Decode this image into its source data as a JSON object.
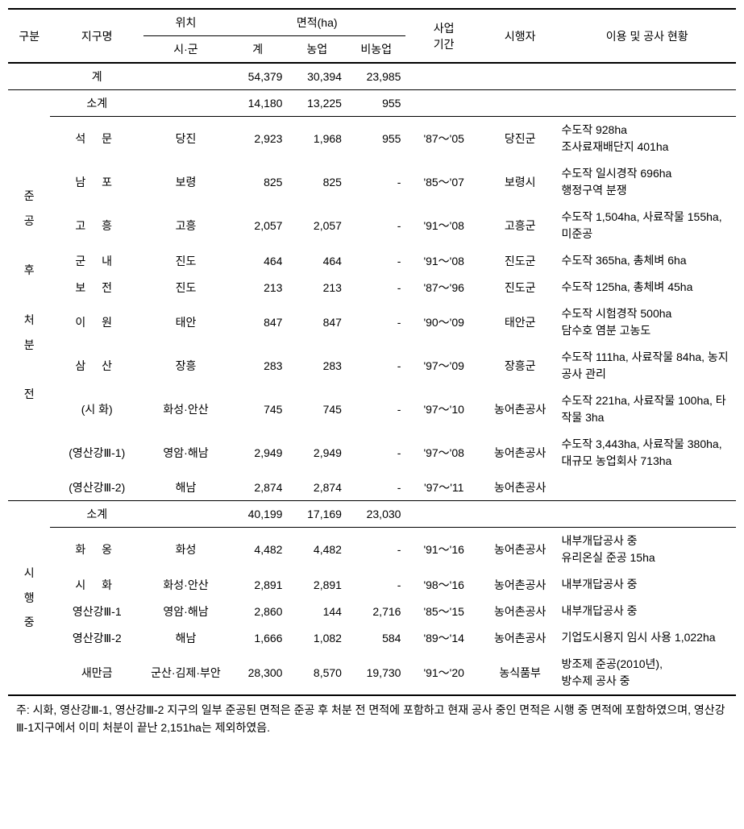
{
  "headers": {
    "gubun": "구분",
    "district": "지구명",
    "location": "위치",
    "location_sub": "시·군",
    "area": "면적(ha)",
    "area_total": "계",
    "area_ag": "농업",
    "area_nonag": "비농업",
    "period": "사업\n기간",
    "executor": "시행자",
    "status": "이용 및 공사 현황"
  },
  "total": {
    "label": "계",
    "area_total": "54,379",
    "area_ag": "30,394",
    "area_nonag": "23,985"
  },
  "section1": {
    "group_label": "준공 후 처분 전",
    "subtotal": {
      "label": "소계",
      "area_total": "14,180",
      "area_ag": "13,225",
      "area_nonag": "955"
    },
    "rows": [
      {
        "name": "석 문",
        "name_class": "name-col",
        "loc": "당진",
        "a1": "2,923",
        "a2": "1,968",
        "a3": "955",
        "period": "'87～'05",
        "exec": "당진군",
        "desc": "수도작 928ha\n조사료재배단지 401ha"
      },
      {
        "name": "남 포",
        "name_class": "name-col",
        "loc": "보령",
        "a1": "825",
        "a2": "825",
        "a3": "-",
        "period": "'85～'07",
        "exec": "보령시",
        "desc": "수도작 일시경작 696ha\n행정구역 분쟁"
      },
      {
        "name": "고 흥",
        "name_class": "name-col",
        "loc": "고흥",
        "a1": "2,057",
        "a2": "2,057",
        "a3": "-",
        "period": "'91～'08",
        "exec": "고흥군",
        "desc": "수도작 1,504ha, 사료작물 155ha, 미준공"
      },
      {
        "name": "군 내",
        "name_class": "name-col",
        "loc": "진도",
        "a1": "464",
        "a2": "464",
        "a3": "-",
        "period": "'91～'08",
        "exec": "진도군",
        "desc": "수도작 365ha, 총체벼 6ha"
      },
      {
        "name": "보 전",
        "name_class": "name-col",
        "loc": "진도",
        "a1": "213",
        "a2": "213",
        "a3": "-",
        "period": "'87～'96",
        "exec": "진도군",
        "desc": "수도작 125ha, 총체벼 45ha"
      },
      {
        "name": "이 원",
        "name_class": "name-col",
        "loc": "태안",
        "a1": "847",
        "a2": "847",
        "a3": "-",
        "period": "'90～'09",
        "exec": "태안군",
        "desc": "수도작 시험경작 500ha\n담수호 염분 고농도"
      },
      {
        "name": "삼 산",
        "name_class": "name-col",
        "loc": "장흥",
        "a1": "283",
        "a2": "283",
        "a3": "-",
        "period": "'97～'09",
        "exec": "장흥군",
        "desc": "수도작 111ha, 사료작물 84ha, 농지 공사 관리"
      },
      {
        "name": "(시 화)",
        "name_class": "name-col-tight",
        "loc": "화성·안산",
        "a1": "745",
        "a2": "745",
        "a3": "-",
        "period": "'97～'10",
        "exec": "농어촌공사",
        "desc": "수도작 221ha, 사료작물 100ha, 타작물 3ha"
      },
      {
        "name": "(영산강Ⅲ-1)",
        "name_class": "name-col-tight",
        "loc": "영암·해남",
        "a1": "2,949",
        "a2": "2,949",
        "a3": "-",
        "period": "'97～'08",
        "exec": "농어촌공사",
        "desc": "수도작 3,443ha, 사료작물 380ha, 대규모 농업회사 713ha"
      },
      {
        "name": "(영산강Ⅲ-2)",
        "name_class": "name-col-tight",
        "loc": "해남",
        "a1": "2,874",
        "a2": "2,874",
        "a3": "-",
        "period": "'97～'11",
        "exec": "농어촌공사",
        "desc": ""
      }
    ]
  },
  "section2": {
    "group_label": "시행중",
    "subtotal": {
      "label": "소계",
      "area_total": "40,199",
      "area_ag": "17,169",
      "area_nonag": "23,030"
    },
    "rows": [
      {
        "name": "화 옹",
        "name_class": "name-col",
        "loc": "화성",
        "a1": "4,482",
        "a2": "4,482",
        "a3": "-",
        "period": "'91～'16",
        "exec": "농어촌공사",
        "desc": "내부개답공사 중\n유리온실 준공 15ha"
      },
      {
        "name": "시 화",
        "name_class": "name-col",
        "loc": "화성·안산",
        "a1": "2,891",
        "a2": "2,891",
        "a3": "-",
        "period": "'98～'16",
        "exec": "농어촌공사",
        "desc": "내부개답공사 중"
      },
      {
        "name": "영산강Ⅲ-1",
        "name_class": "name-col-tight",
        "loc": "영암·해남",
        "a1": "2,860",
        "a2": "144",
        "a3": "2,716",
        "period": "'85～'15",
        "exec": "농어촌공사",
        "desc": "내부개답공사 중"
      },
      {
        "name": "영산강Ⅲ-2",
        "name_class": "name-col-tight",
        "loc": "해남",
        "a1": "1,666",
        "a2": "1,082",
        "a3": "584",
        "period": "'89～'14",
        "exec": "농어촌공사",
        "desc": "기업도시용지 임시 사용 1,022ha"
      },
      {
        "name": "새만금",
        "name_class": "name-col-tight",
        "loc": "군산·김제·부안",
        "a1": "28,300",
        "a2": "8,570",
        "a3": "19,730",
        "period": "'91～'20",
        "exec": "농식품부",
        "desc": "방조제 준공(2010년),\n방수제 공사 중"
      }
    ]
  },
  "footnote": "주: 시화, 영산강Ⅲ-1, 영산강Ⅲ-2 지구의 일부 준공된 면적은 준공 후 처분 전 면적에 포함하고 현재 공사 중인 면적은  시행 중 면적에 포함하였으며, 영산강Ⅲ-1지구에서 이미 처분이 끝난 2,151ha는 제외하였음."
}
